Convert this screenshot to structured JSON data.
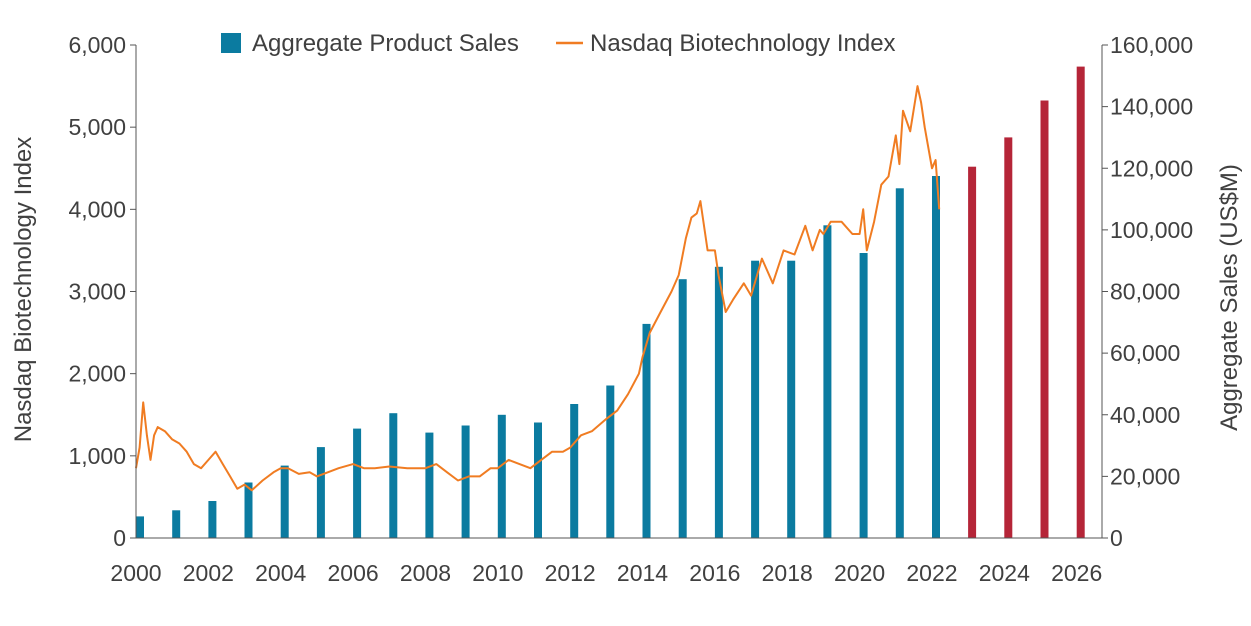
{
  "chart_data": {
    "type": "bar",
    "title": "",
    "x_ticks": [
      "2000",
      "2002",
      "2004",
      "2006",
      "2008",
      "2010",
      "2012",
      "2014",
      "2016",
      "2018",
      "2020",
      "2022",
      "2024",
      "2026"
    ],
    "left_axis": {
      "label": "Nasdaq Biotechnology Index",
      "ylim": [
        0,
        6000
      ],
      "ticks": [
        "0",
        "1,000",
        "2,000",
        "3,000",
        "4,000",
        "5,000",
        "6,000"
      ]
    },
    "right_axis": {
      "label": "Aggregate Sales (US$M)",
      "ylim": [
        0,
        160000
      ],
      "ticks": [
        "0",
        "20,000",
        "40,000",
        "60,000",
        "80,000",
        "100,000",
        "120,000",
        "140,000",
        "160,000"
      ]
    },
    "legend": {
      "placement": "top",
      "items": [
        {
          "label": "Aggregate Product Sales",
          "color": "#0b7ba0",
          "marker": "square"
        },
        {
          "label": "Nasdaq Biotechnology Index",
          "color": "#f07c22",
          "marker": "line"
        }
      ]
    },
    "grid": false,
    "series": [
      {
        "name": "Aggregate Product Sales",
        "axis": "right",
        "color_actual": "#0b7ba0",
        "color_forecast": "#b52538",
        "x": [
          2000,
          2001,
          2002,
          2003,
          2004,
          2005,
          2006,
          2007,
          2008,
          2009,
          2010,
          2011,
          2012,
          2013,
          2014,
          2015,
          2016,
          2017,
          2018,
          2019,
          2020,
          2021,
          2022,
          2023,
          2024,
          2025,
          2026
        ],
        "values": [
          7000,
          9000,
          12000,
          18000,
          23500,
          29500,
          35500,
          40500,
          34200,
          36500,
          40000,
          37500,
          43500,
          49500,
          69500,
          84000,
          88000,
          90000,
          90000,
          101500,
          92500,
          113500,
          117500,
          120500,
          130000,
          142000,
          153000
        ],
        "forecast": [
          false,
          false,
          false,
          false,
          false,
          false,
          false,
          false,
          false,
          false,
          false,
          false,
          false,
          false,
          false,
          false,
          false,
          false,
          false,
          false,
          false,
          false,
          false,
          true,
          true,
          true,
          true
        ]
      },
      {
        "name": "Nasdaq Biotechnology Index",
        "axis": "left",
        "color": "#f07c22",
        "x": [
          2000.0,
          2000.1,
          2000.2,
          2000.3,
          2000.4,
          2000.5,
          2000.6,
          2000.8,
          2001.0,
          2001.2,
          2001.4,
          2001.6,
          2001.8,
          2002.0,
          2002.2,
          2002.4,
          2002.6,
          2002.8,
          2003.0,
          2003.2,
          2003.5,
          2003.8,
          2004.0,
          2004.2,
          2004.5,
          2004.8,
          2005.0,
          2005.3,
          2005.6,
          2006.0,
          2006.3,
          2006.6,
          2007.0,
          2007.5,
          2008.0,
          2008.3,
          2008.6,
          2008.9,
          2009.2,
          2009.5,
          2009.8,
          2010.0,
          2010.3,
          2010.6,
          2010.9,
          2011.2,
          2011.5,
          2011.8,
          2012.0,
          2012.3,
          2012.6,
          2013.0,
          2013.3,
          2013.6,
          2013.9,
          2014.0,
          2014.2,
          2014.5,
          2014.8,
          2015.0,
          2015.2,
          2015.35,
          2015.5,
          2015.6,
          2015.8,
          2016.0,
          2016.1,
          2016.3,
          2016.5,
          2016.8,
          2017.0,
          2017.3,
          2017.6,
          2017.9,
          2018.2,
          2018.5,
          2018.7,
          2018.9,
          2019.0,
          2019.2,
          2019.5,
          2019.8,
          2020.0,
          2020.1,
          2020.2,
          2020.4,
          2020.6,
          2020.8,
          2021.0,
          2021.1,
          2021.2,
          2021.4,
          2021.6,
          2021.7,
          2021.8,
          2022.0,
          2022.1,
          2022.2
        ],
        "values": [
          850,
          1100,
          1650,
          1250,
          950,
          1250,
          1350,
          1300,
          1200,
          1150,
          1050,
          900,
          850,
          950,
          1050,
          900,
          750,
          600,
          650,
          580,
          700,
          800,
          850,
          850,
          780,
          800,
          750,
          800,
          850,
          900,
          850,
          850,
          870,
          850,
          850,
          900,
          800,
          700,
          750,
          750,
          850,
          850,
          950,
          900,
          850,
          950,
          1050,
          1050,
          1100,
          1250,
          1300,
          1450,
          1550,
          1750,
          2000,
          2200,
          2500,
          2750,
          3000,
          3200,
          3650,
          3900,
          3950,
          4100,
          3500,
          3500,
          3200,
          2750,
          2900,
          3100,
          2950,
          3400,
          3100,
          3500,
          3450,
          3800,
          3500,
          3750,
          3700,
          3850,
          3850,
          3700,
          3700,
          4000,
          3500,
          3850,
          4300,
          4400,
          4900,
          4550,
          5200,
          4950,
          5500,
          5300,
          5000,
          4500,
          4600,
          4000
        ]
      }
    ]
  }
}
